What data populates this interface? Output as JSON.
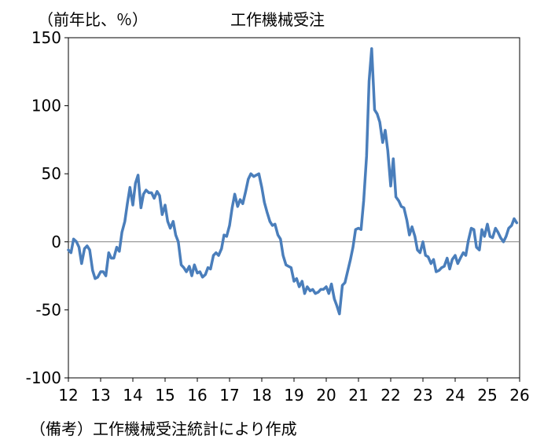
{
  "chart_data": {
    "type": "line",
    "title": "工作機械受注",
    "ylabel": "（前年比、％）",
    "note": "（備考）工作機械受注統計により作成",
    "ylim": [
      -100,
      150
    ],
    "xlim": [
      12,
      26
    ],
    "y_ticks": [
      -100,
      -50,
      0,
      50,
      100,
      150
    ],
    "x_ticks": [
      12,
      13,
      14,
      15,
      16,
      17,
      18,
      19,
      20,
      21,
      22,
      23,
      24,
      25,
      26
    ],
    "line_color": "#4a7ebb",
    "series": [
      {
        "values": [
          [
            12.0,
            -6
          ],
          [
            12.08,
            -8
          ],
          [
            12.16,
            2
          ],
          [
            12.25,
            0
          ],
          [
            12.33,
            -4
          ],
          [
            12.41,
            -16
          ],
          [
            12.5,
            -5
          ],
          [
            12.58,
            -3
          ],
          [
            12.66,
            -6
          ],
          [
            12.75,
            -21
          ],
          [
            12.83,
            -27
          ],
          [
            12.91,
            -26
          ],
          [
            13.0,
            -22
          ],
          [
            13.08,
            -22
          ],
          [
            13.16,
            -25
          ],
          [
            13.25,
            -8
          ],
          [
            13.33,
            -12
          ],
          [
            13.41,
            -12
          ],
          [
            13.5,
            -4
          ],
          [
            13.58,
            -7
          ],
          [
            13.66,
            7
          ],
          [
            13.75,
            15
          ],
          [
            13.83,
            28
          ],
          [
            13.91,
            40
          ],
          [
            14.0,
            27
          ],
          [
            14.08,
            43
          ],
          [
            14.16,
            49
          ],
          [
            14.25,
            25
          ],
          [
            14.33,
            35
          ],
          [
            14.41,
            38
          ],
          [
            14.5,
            36
          ],
          [
            14.58,
            36
          ],
          [
            14.66,
            32
          ],
          [
            14.75,
            37
          ],
          [
            14.83,
            34
          ],
          [
            14.91,
            20
          ],
          [
            15.0,
            27
          ],
          [
            15.08,
            15
          ],
          [
            15.16,
            10
          ],
          [
            15.25,
            15
          ],
          [
            15.33,
            5
          ],
          [
            15.41,
            0
          ],
          [
            15.5,
            -17
          ],
          [
            15.58,
            -19
          ],
          [
            15.66,
            -22
          ],
          [
            15.75,
            -18
          ],
          [
            15.83,
            -25
          ],
          [
            15.91,
            -17
          ],
          [
            16.0,
            -23
          ],
          [
            16.08,
            -22
          ],
          [
            16.16,
            -26
          ],
          [
            16.25,
            -24
          ],
          [
            16.33,
            -19
          ],
          [
            16.41,
            -20
          ],
          [
            16.5,
            -10
          ],
          [
            16.58,
            -8
          ],
          [
            16.66,
            -10
          ],
          [
            16.75,
            -5
          ],
          [
            16.83,
            5
          ],
          [
            16.91,
            4
          ],
          [
            17.0,
            12
          ],
          [
            17.08,
            25
          ],
          [
            17.16,
            35
          ],
          [
            17.25,
            26
          ],
          [
            17.33,
            31
          ],
          [
            17.41,
            28
          ],
          [
            17.5,
            37
          ],
          [
            17.58,
            46
          ],
          [
            17.66,
            50
          ],
          [
            17.75,
            48
          ],
          [
            17.83,
            49
          ],
          [
            17.91,
            50
          ],
          [
            18.0,
            40
          ],
          [
            18.08,
            29
          ],
          [
            18.16,
            22
          ],
          [
            18.25,
            15
          ],
          [
            18.33,
            12
          ],
          [
            18.41,
            13
          ],
          [
            18.5,
            5
          ],
          [
            18.58,
            2
          ],
          [
            18.66,
            -10
          ],
          [
            18.75,
            -17
          ],
          [
            18.83,
            -18
          ],
          [
            18.91,
            -19
          ],
          [
            19.0,
            -29
          ],
          [
            19.08,
            -27
          ],
          [
            19.16,
            -33
          ],
          [
            19.25,
            -29
          ],
          [
            19.33,
            -38
          ],
          [
            19.41,
            -33
          ],
          [
            19.5,
            -36
          ],
          [
            19.58,
            -35
          ],
          [
            19.66,
            -38
          ],
          [
            19.75,
            -37
          ],
          [
            19.83,
            -35
          ],
          [
            19.91,
            -35
          ],
          [
            20.0,
            -33
          ],
          [
            20.08,
            -38
          ],
          [
            20.16,
            -31
          ],
          [
            20.25,
            -42
          ],
          [
            20.33,
            -47
          ],
          [
            20.41,
            -53
          ],
          [
            20.5,
            -32
          ],
          [
            20.58,
            -30
          ],
          [
            20.66,
            -22
          ],
          [
            20.75,
            -13
          ],
          [
            20.83,
            -4
          ],
          [
            20.91,
            9
          ],
          [
            21.0,
            10
          ],
          [
            21.08,
            9
          ],
          [
            21.16,
            30
          ],
          [
            21.25,
            63
          ],
          [
            21.33,
            118
          ],
          [
            21.41,
            142
          ],
          [
            21.5,
            97
          ],
          [
            21.58,
            94
          ],
          [
            21.66,
            88
          ],
          [
            21.75,
            73
          ],
          [
            21.83,
            82
          ],
          [
            21.91,
            67
          ],
          [
            22.0,
            41
          ],
          [
            22.08,
            61
          ],
          [
            22.16,
            33
          ],
          [
            22.25,
            30
          ],
          [
            22.33,
            26
          ],
          [
            22.41,
            25
          ],
          [
            22.5,
            16
          ],
          [
            22.58,
            5
          ],
          [
            22.66,
            11
          ],
          [
            22.75,
            4
          ],
          [
            22.83,
            -6
          ],
          [
            22.91,
            -8
          ],
          [
            23.0,
            0
          ],
          [
            23.08,
            -10
          ],
          [
            23.16,
            -11
          ],
          [
            23.25,
            -16
          ],
          [
            23.33,
            -13
          ],
          [
            23.41,
            -22
          ],
          [
            23.5,
            -21
          ],
          [
            23.58,
            -19
          ],
          [
            23.66,
            -18
          ],
          [
            23.75,
            -12
          ],
          [
            23.83,
            -20
          ],
          [
            23.91,
            -13
          ],
          [
            24.0,
            -10
          ],
          [
            24.08,
            -16
          ],
          [
            24.16,
            -12
          ],
          [
            24.25,
            -8
          ],
          [
            24.33,
            -10
          ],
          [
            24.41,
            1
          ],
          [
            24.5,
            10
          ],
          [
            24.58,
            9
          ],
          [
            24.66,
            -4
          ],
          [
            24.75,
            -6
          ],
          [
            24.83,
            9
          ],
          [
            24.91,
            4
          ],
          [
            25.0,
            13
          ],
          [
            25.08,
            4
          ],
          [
            25.16,
            3
          ],
          [
            25.25,
            10
          ],
          [
            25.33,
            7
          ],
          [
            25.41,
            3
          ],
          [
            25.5,
            0
          ],
          [
            25.58,
            4
          ],
          [
            25.66,
            10
          ],
          [
            25.75,
            12
          ],
          [
            25.83,
            17
          ],
          [
            25.91,
            14
          ]
        ]
      }
    ]
  }
}
